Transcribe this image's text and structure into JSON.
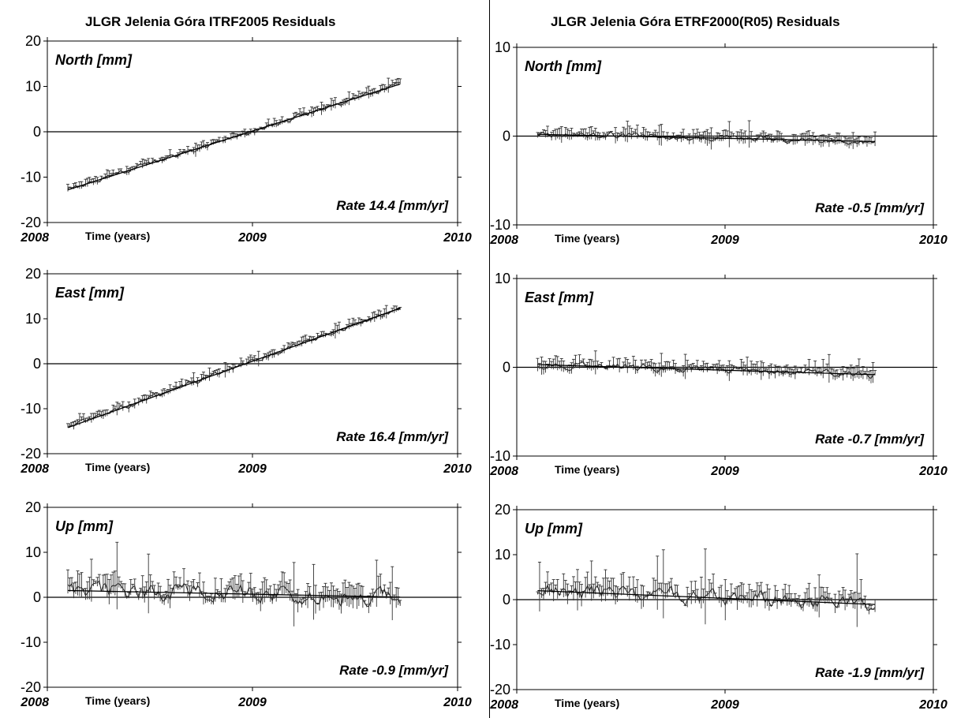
{
  "left_title": "JLGR Jelenia Góra ITRF2005 Residuals",
  "right_title": "JLGR Jelenia Góra ETRF2000(R05) Residuals",
  "chart_data": [
    {
      "type": "scatter",
      "frame": "ITRF2005",
      "component_label": "North [mm]",
      "rate_label": "Rate 14.4 [mm/yr]",
      "rate": 14.4,
      "xlabel": "Time (years)",
      "xlim": [
        2008,
        2010
      ],
      "xticks": [
        "2008",
        "2009",
        "2010"
      ],
      "ylim": [
        -20,
        20
      ],
      "yticks": [
        "20",
        "10",
        "0",
        "-10",
        "-20"
      ],
      "t_range": [
        2008.1,
        2009.72
      ],
      "start_value": -12.8,
      "noise": 0.9,
      "spike_scale": 0.15,
      "error_bar_scale": 1.2
    },
    {
      "type": "scatter",
      "frame": "ITRF2005",
      "component_label": "East [mm]",
      "rate_label": "Rate 16.4 [mm/yr]",
      "rate": 16.4,
      "xlabel": "Time (years)",
      "xlim": [
        2008,
        2010
      ],
      "xticks": [
        "2008",
        "2009",
        "2010"
      ],
      "ylim": [
        -20,
        20
      ],
      "yticks": [
        "20",
        "10",
        "0",
        "-10",
        "-20"
      ],
      "t_range": [
        2008.1,
        2009.72
      ],
      "start_value": -14.2,
      "noise": 1.0,
      "spike_scale": 0.15,
      "error_bar_scale": 1.3
    },
    {
      "type": "scatter",
      "frame": "ITRF2005",
      "component_label": "Up [mm]",
      "rate_label": "Rate -0.9 [mm/yr]",
      "rate": -0.9,
      "xlabel": "Time (years)",
      "xlim": [
        2008,
        2010
      ],
      "xticks": [
        "2008",
        "2009",
        "2010"
      ],
      "ylim": [
        -20,
        20
      ],
      "yticks": [
        "20",
        "10",
        "0",
        "-10",
        "-20"
      ],
      "t_range": [
        2008.1,
        2009.72
      ],
      "start_value": 1.5,
      "noise": 3.2,
      "spike_scale": 1.0,
      "error_bar_scale": 3.5
    },
    {
      "type": "scatter",
      "frame": "ETRF2000(R05)",
      "component_label": "North [mm]",
      "rate_label": "Rate -0.5 [mm/yr]",
      "rate": -0.5,
      "xlabel": "Time (years)",
      "xlim": [
        2008,
        2010
      ],
      "xticks": [
        "2008",
        "2009",
        "2010"
      ],
      "ylim": [
        -10,
        10
      ],
      "yticks": [
        "10",
        "0",
        "-10"
      ],
      "t_range": [
        2008.1,
        2009.72
      ],
      "start_value": 0.2,
      "noise": 0.6,
      "spike_scale": 0.4,
      "error_bar_scale": 0.9
    },
    {
      "type": "scatter",
      "frame": "ETRF2000(R05)",
      "component_label": "East [mm]",
      "rate_label": "Rate -0.7 [mm/yr]",
      "rate": -0.7,
      "xlabel": "Time (years)",
      "xlim": [
        2008,
        2010
      ],
      "xticks": [
        "2008",
        "2009",
        "2010"
      ],
      "ylim": [
        -10,
        10
      ],
      "yticks": [
        "10",
        "0",
        "-10"
      ],
      "t_range": [
        2008.1,
        2009.72
      ],
      "start_value": 0.3,
      "noise": 0.7,
      "spike_scale": 0.3,
      "error_bar_scale": 1.0
    },
    {
      "type": "scatter",
      "frame": "ETRF2000(R05)",
      "component_label": "Up [mm]",
      "rate_label": "Rate -1.9 [mm/yr]",
      "rate": -1.9,
      "xlabel": "Time (years)",
      "xlim": [
        2008,
        2010
      ],
      "xticks": [
        "2008",
        "2009",
        "2010"
      ],
      "ylim": [
        -20,
        20
      ],
      "yticks": [
        "20",
        "10",
        "0",
        "-10",
        "-20"
      ],
      "t_range": [
        2008.1,
        2009.72
      ],
      "start_value": 2.0,
      "noise": 3.0,
      "spike_scale": 1.0,
      "error_bar_scale": 3.3
    }
  ]
}
